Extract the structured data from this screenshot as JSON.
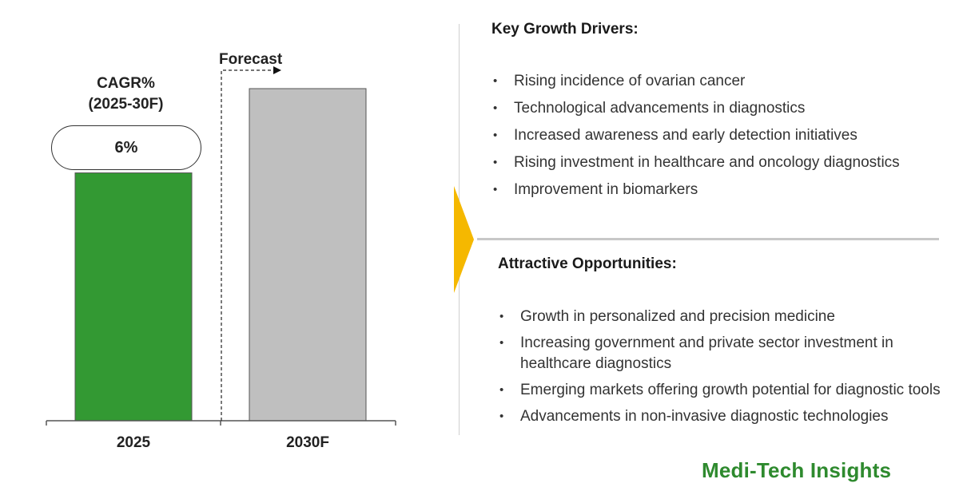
{
  "chart_data": {
    "type": "bar",
    "categories": [
      "2025",
      "2030F"
    ],
    "values": [
      1.0,
      1.34
    ],
    "colors": [
      "#339933",
      "#bfbfbf"
    ],
    "forecast_label": "Forecast",
    "cagr": {
      "title_line1": "CAGR%",
      "title_line2": "(2025-30F)",
      "value": "6%"
    }
  },
  "drivers": {
    "title": "Key Growth Drivers:",
    "items": [
      "Rising incidence of ovarian cancer",
      "Technological advancements in diagnostics",
      "Increased awareness and early detection initiatives",
      "Rising investment in healthcare and oncology diagnostics",
      "Improvement in biomarkers"
    ]
  },
  "opportunities": {
    "title": "Attractive Opportunities:",
    "items": [
      "Growth in personalized and precision medicine",
      "Increasing government and private sector investment in healthcare diagnostics",
      "Emerging markets offering growth potential for diagnostic tools",
      "Advancements in non-invasive diagnostic technologies"
    ]
  },
  "brand": {
    "name": "Medi-Tech Insights",
    "color": "#2e8a2e"
  },
  "accent": "#f5b800"
}
